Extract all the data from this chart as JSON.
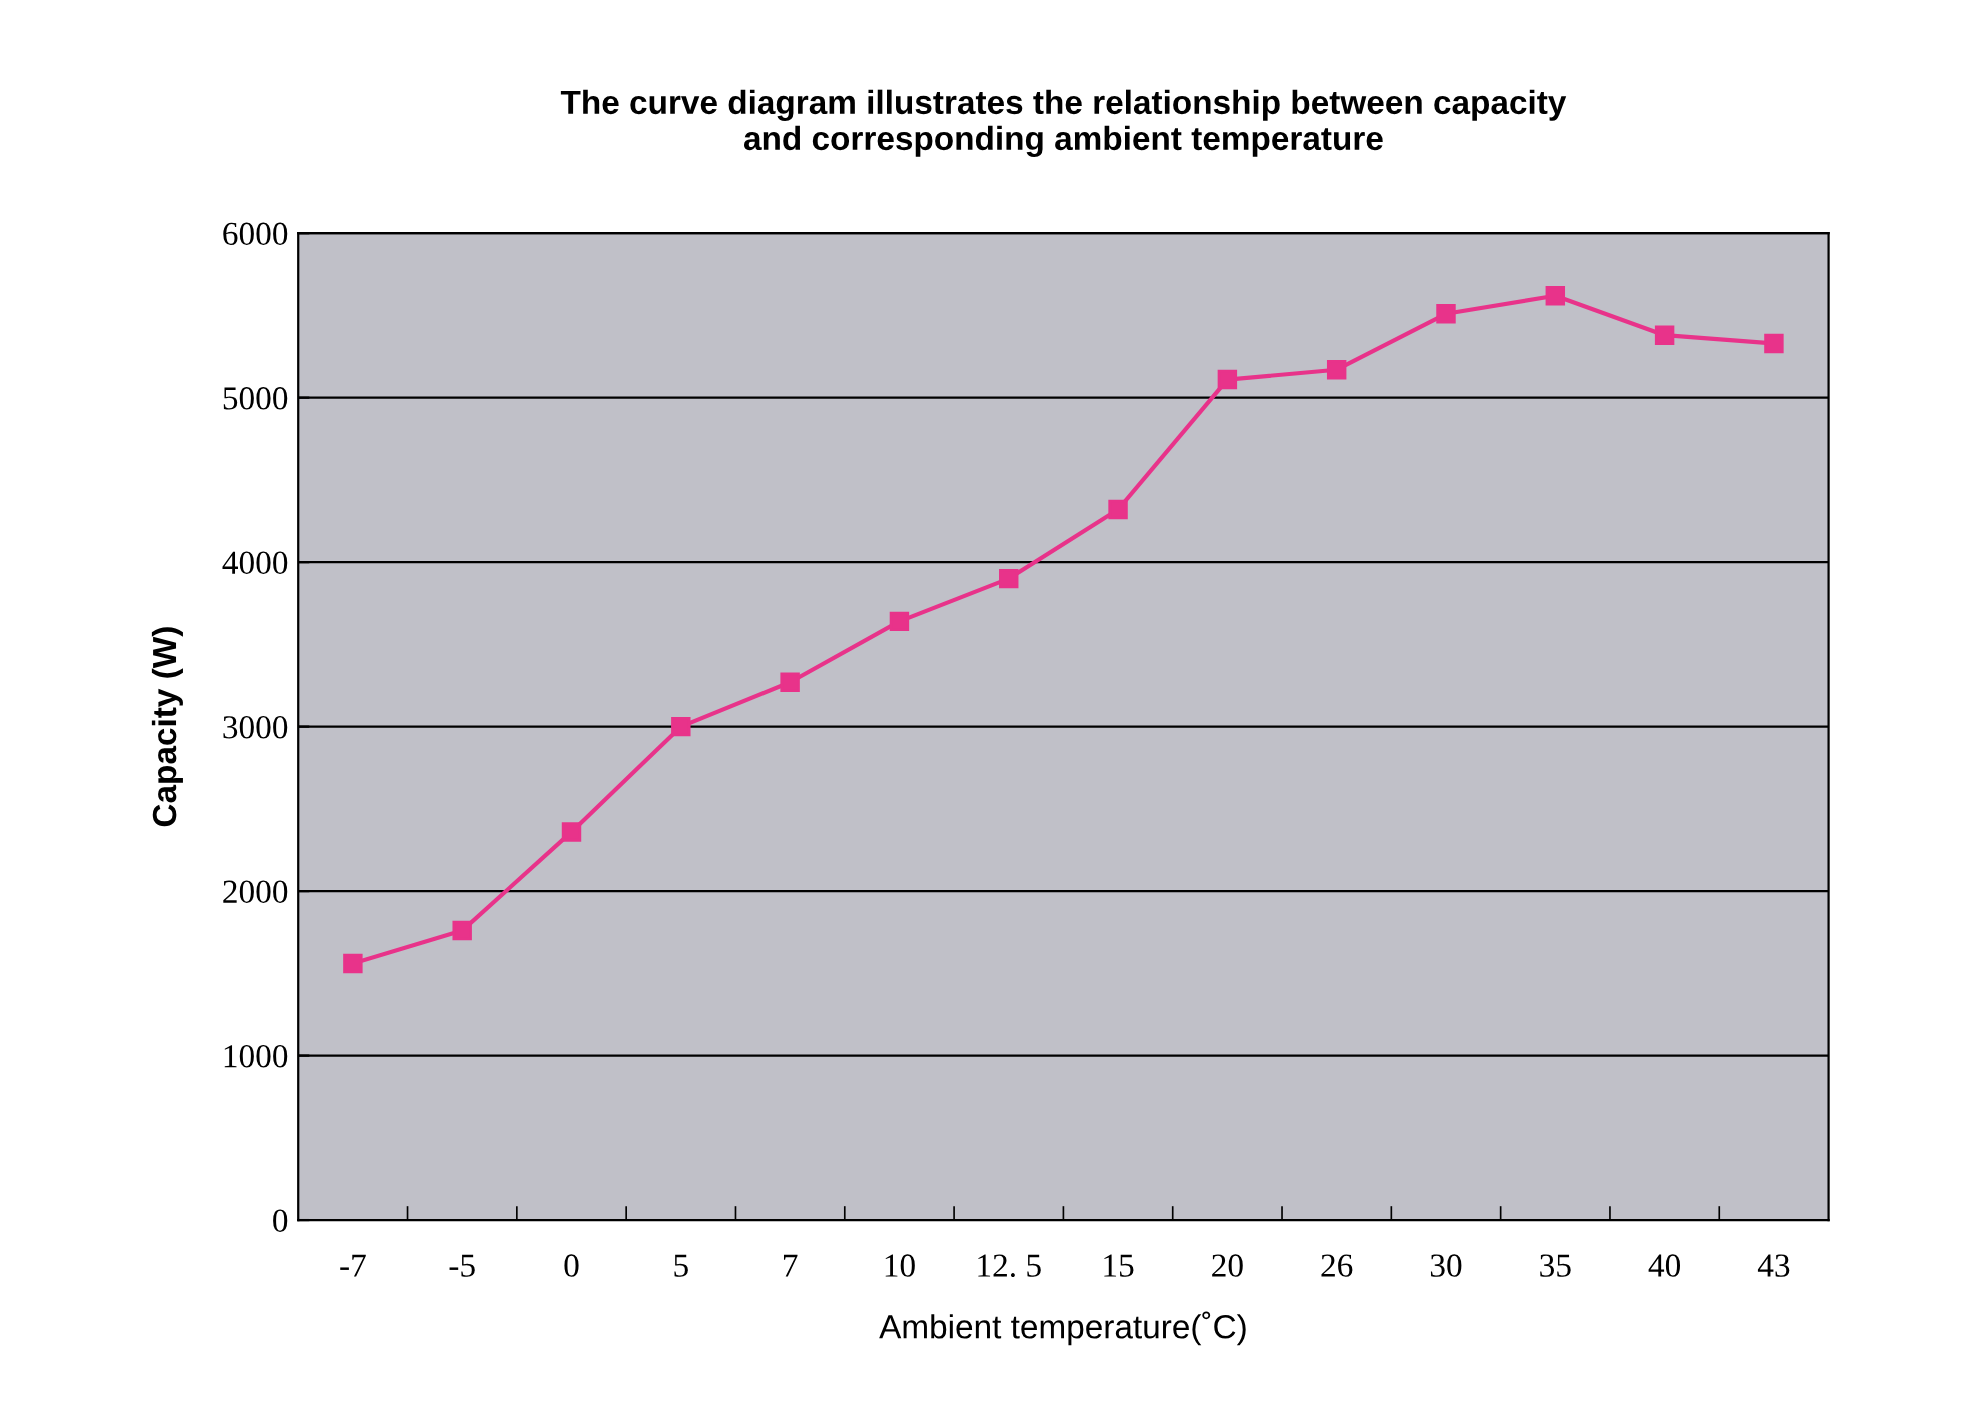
{
  "chart_data": {
    "type": "line",
    "title": "The curve diagram illustrates the relationship between capacity\nand corresponding ambient temperature",
    "xlabel": "Ambient temperature(˚C)",
    "ylabel": "Capacity (W)",
    "categories": [
      "-7",
      "-5",
      "0",
      "5",
      "7",
      "10",
      "12. 5",
      "15",
      "20",
      "26",
      "30",
      "35",
      "40",
      "43"
    ],
    "series": [
      {
        "color": "#e8338a",
        "values": [
          1560,
          1760,
          2360,
          3000,
          3270,
          3640,
          3900,
          4320,
          5110,
          5170,
          5510,
          5620,
          5380,
          5330
        ]
      }
    ],
    "ylim": [
      0,
      6000
    ],
    "yticks": [
      0,
      1000,
      2000,
      3000,
      4000,
      5000,
      6000
    ],
    "grid": "y",
    "marker": "square",
    "line_style": "solid",
    "legend": false
  }
}
